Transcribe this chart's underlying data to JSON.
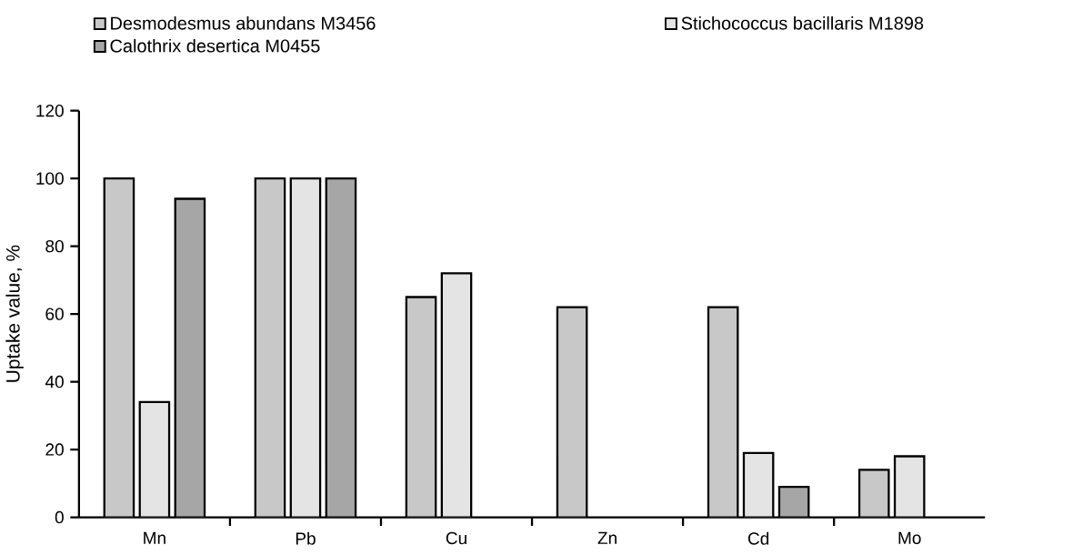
{
  "chart_data": {
    "type": "bar",
    "ylabel": "Uptake value, %",
    "categories": [
      "Mn",
      "Pb",
      "Cu",
      "Zn",
      "Cd",
      "Mo"
    ],
    "series": [
      {
        "name": "Desmodesmus abundans M3456",
        "color": "#c8c8c8",
        "values": [
          100,
          100,
          65,
          62,
          62,
          14
        ]
      },
      {
        "name": "Stichococcus bacillaris M1898",
        "color": "#e4e4e4",
        "values": [
          34,
          100,
          72,
          null,
          19,
          18
        ]
      },
      {
        "name": "Calothrix desertica M0455",
        "color": "#a6a6a6",
        "values": [
          94,
          100,
          null,
          null,
          9,
          null
        ]
      }
    ],
    "ylim": [
      0,
      120
    ],
    "yticks": [
      0,
      20,
      40,
      60,
      80,
      100,
      120
    ],
    "grid": false,
    "legend": "top"
  }
}
